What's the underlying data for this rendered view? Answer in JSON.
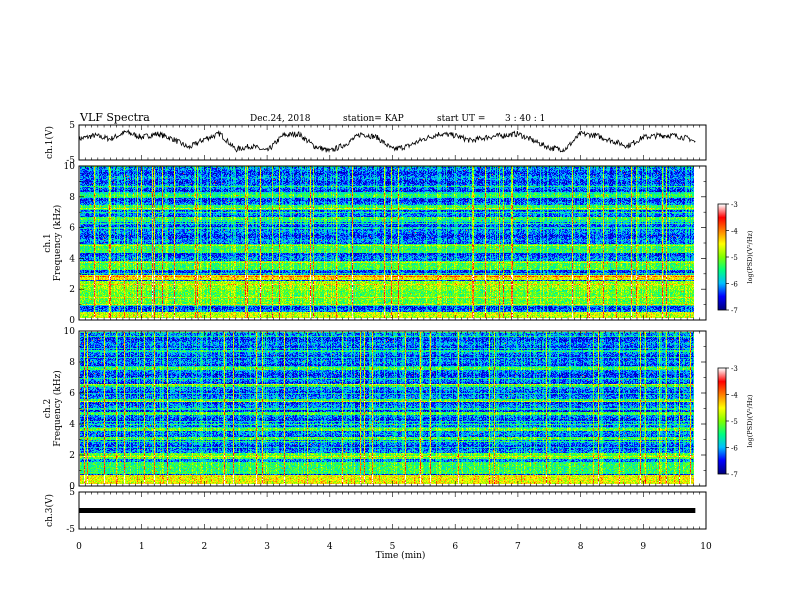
{
  "header": {
    "title": "VLF Spectra",
    "date": "Dec.24, 2018",
    "station": "station= KAP",
    "start_label": "start UT =",
    "start_time": "3 : 40 : 1"
  },
  "chart_data": [
    {
      "type": "line",
      "ylabel": "ch.1(V)",
      "ylim": [
        -5,
        5
      ],
      "yticks": [
        "5",
        "-5"
      ],
      "xlim": [
        0,
        10
      ],
      "series": [
        {
          "x": [
            0,
            0.25,
            0.5,
            0.75,
            1,
            1.25,
            1.5,
            1.75,
            2,
            2.25,
            2.5,
            2.75,
            3,
            3.25,
            3.5,
            3.75,
            4,
            4.25,
            4.5,
            4.75,
            5,
            5.25,
            5.5,
            5.75,
            6,
            6.25,
            6.5,
            6.75,
            7,
            7.25,
            7.5,
            7.75,
            8,
            8.25,
            8.5,
            8.75,
            9,
            9.25,
            9.5,
            9.75,
            9.83
          ],
          "y": [
            1.0,
            2.0,
            1.0,
            3.0,
            1.5,
            2.5,
            1.0,
            -1.5,
            1.0,
            2.5,
            -2.0,
            -1.0,
            -2.5,
            2.0,
            2.5,
            -1.0,
            -2.5,
            -0.5,
            2.5,
            1.5,
            -2.0,
            -1.0,
            1.0,
            2.5,
            2.0,
            0.5,
            1.5,
            2.0,
            2.5,
            0.5,
            -1.5,
            -2.0,
            2.5,
            2.0,
            0.5,
            -1.0,
            1.5,
            2.0,
            2.0,
            1.0,
            0.0
          ]
        }
      ]
    },
    {
      "type": "heatmap",
      "ylabel": "ch.1 Frequency (kHz)",
      "ylim": [
        0,
        10
      ],
      "yticks": [
        "0",
        "2",
        "4",
        "6",
        "8",
        "10"
      ],
      "xlim": [
        0,
        10
      ],
      "colorbar": {
        "label": "log(PSD)(V²/Hz)",
        "range": [
          -7,
          -3
        ],
        "ticks": [
          "-3",
          "-4",
          "-5",
          "-6",
          "-7"
        ]
      }
    },
    {
      "type": "heatmap",
      "ylabel": "ch.2 Frequency (kHz)",
      "ylim": [
        0,
        10
      ],
      "yticks": [
        "0",
        "2",
        "4",
        "6",
        "8",
        "10"
      ],
      "xlim": [
        0,
        10
      ],
      "colorbar": {
        "label": "log(PSD)(V²/Hz)",
        "range": [
          -7,
          -3
        ],
        "ticks": [
          "-3",
          "-4",
          "-5",
          "-6",
          "-7"
        ]
      }
    },
    {
      "type": "line",
      "ylabel": "ch.3(V)",
      "ylim": [
        -5,
        5
      ],
      "yticks": [
        "5",
        "-5"
      ],
      "xlim": [
        0,
        10
      ],
      "series": [
        {
          "x": [
            0,
            9.83
          ],
          "y": [
            0,
            0
          ]
        }
      ]
    }
  ],
  "xaxis": {
    "label": "Time (min)",
    "ticks": [
      "0",
      "1",
      "2",
      "3",
      "4",
      "5",
      "6",
      "7",
      "8",
      "9",
      "10"
    ]
  },
  "colors": {
    "axis": "#000000",
    "colormap": [
      "#00007f",
      "#0000ff",
      "#00bfff",
      "#00ff7f",
      "#7fff00",
      "#ffff00",
      "#ff8000",
      "#ff0000",
      "#ffffff"
    ]
  }
}
